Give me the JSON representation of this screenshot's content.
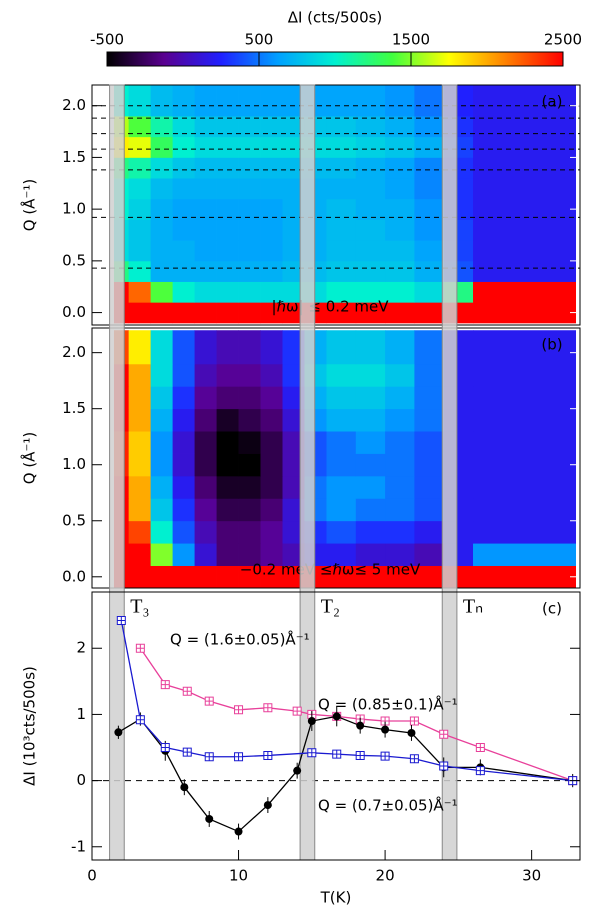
{
  "chart_data": [
    {
      "type": "heatmap",
      "panel_label": "(a)",
      "annotation": "|ℏω| ≤ 0.2 meV",
      "y_label": "Q (Å⁻¹)",
      "colorbar_label": "ΔI (cts/500s)",
      "clim": [
        -500,
        2500
      ],
      "colorbar_ticks": [
        -500,
        500,
        1500,
        2500
      ],
      "colormap": [
        "#000000",
        "#5a0090",
        "#2020ff",
        "#00a0ff",
        "#00f0d0",
        "#40ff40",
        "#ffff00",
        "#ff8000",
        "#ff0000"
      ],
      "xlim": [
        0,
        33.3
      ],
      "ylim": [
        -0.12,
        2.2
      ],
      "yticks": [
        {
          "value": 0,
          "label": "0.0"
        },
        0.5,
        {
          "value": 1,
          "label": "1.0"
        },
        1.5,
        {
          "value": 2,
          "label": "2.0"
        }
      ],
      "hlines": [
        0.43,
        0.92,
        1.38,
        1.58,
        1.73,
        1.88,
        2.0
      ],
      "x_edges": [
        1.5,
        2.5,
        4,
        5.5,
        7,
        8.5,
        10,
        11.5,
        13,
        14.5,
        16,
        18,
        20,
        22,
        24,
        26,
        33
      ],
      "y_edges": [
        -0.1,
        0.1,
        0.3,
        0.5,
        0.7,
        0.9,
        1.1,
        1.3,
        1.5,
        1.7,
        1.9,
        2.2
      ],
      "values": [
        [
          2500,
          2500,
          2500,
          2500,
          2500,
          2500,
          2500,
          2500,
          2500,
          2500,
          2500,
          2500,
          2500,
          2500,
          2500,
          2500
        ],
        [
          2500,
          2200,
          1400,
          1000,
          900,
          900,
          900,
          900,
          900,
          900,
          1000,
          1000,
          1000,
          900,
          1200,
          2500
        ],
        [
          1200,
          1000,
          700,
          700,
          700,
          700,
          700,
          700,
          750,
          750,
          800,
          800,
          800,
          700,
          400,
          200
        ],
        [
          900,
          800,
          700,
          700,
          650,
          650,
          650,
          650,
          700,
          700,
          750,
          750,
          750,
          650,
          350,
          200
        ],
        [
          900,
          800,
          700,
          650,
          650,
          650,
          650,
          650,
          700,
          700,
          750,
          750,
          700,
          600,
          350,
          200
        ],
        [
          1000,
          850,
          700,
          650,
          650,
          650,
          650,
          650,
          700,
          700,
          750,
          700,
          700,
          600,
          300,
          200
        ],
        [
          1000,
          900,
          750,
          700,
          700,
          700,
          700,
          700,
          700,
          700,
          700,
          700,
          650,
          550,
          300,
          200
        ],
        [
          1200,
          1100,
          900,
          800,
          750,
          750,
          750,
          750,
          750,
          750,
          750,
          700,
          650,
          550,
          300,
          200
        ],
        [
          1800,
          1700,
          1300,
          1000,
          900,
          900,
          900,
          900,
          900,
          900,
          900,
          850,
          800,
          700,
          350,
          200
        ],
        [
          1600,
          1400,
          1100,
          900,
          800,
          800,
          800,
          800,
          800,
          800,
          800,
          750,
          700,
          600,
          300,
          200
        ],
        [
          1000,
          900,
          750,
          700,
          650,
          650,
          650,
          650,
          650,
          650,
          650,
          650,
          600,
          500,
          250,
          200
        ]
      ]
    },
    {
      "type": "heatmap",
      "panel_label": "(b)",
      "annotation": "−0.2 meV ≤ℏω≤ 5 meV",
      "y_label": "Q (Å⁻¹)",
      "xlim": [
        0,
        33.3
      ],
      "ylim": [
        -0.1,
        2.22
      ],
      "yticks": [
        {
          "value": 0,
          "label": "0.0"
        },
        0.5,
        {
          "value": 1,
          "label": "1.0"
        },
        1.5,
        {
          "value": 2,
          "label": "2.0"
        }
      ],
      "x_edges": [
        1.5,
        2.5,
        4,
        5.5,
        7,
        8.5,
        10,
        11.5,
        13,
        14.5,
        16,
        18,
        20,
        22,
        24,
        26,
        33
      ],
      "y_edges": [
        -0.1,
        0.1,
        0.3,
        0.5,
        0.7,
        0.9,
        1.1,
        1.3,
        1.5,
        1.7,
        1.9,
        2.2
      ],
      "values": [
        [
          2500,
          2500,
          2500,
          2500,
          2500,
          2500,
          2500,
          2500,
          2500,
          2500,
          2500,
          2500,
          2500,
          2500,
          2500,
          2500
        ],
        [
          2500,
          2500,
          1500,
          600,
          100,
          -200,
          -200,
          -100,
          0,
          200,
          200,
          100,
          100,
          0,
          200,
          600
        ],
        [
          2500,
          2300,
          1000,
          400,
          0,
          -200,
          -200,
          -100,
          100,
          300,
          400,
          300,
          300,
          200,
          200,
          200
        ],
        [
          2500,
          2000,
          800,
          300,
          -100,
          -300,
          -300,
          -200,
          100,
          500,
          600,
          500,
          500,
          400,
          200,
          200
        ],
        [
          2500,
          2000,
          700,
          200,
          -200,
          -400,
          -400,
          -300,
          0,
          500,
          600,
          600,
          500,
          400,
          200,
          200
        ],
        [
          2400,
          1900,
          600,
          100,
          -300,
          -500,
          -500,
          -300,
          0,
          400,
          500,
          500,
          500,
          400,
          200,
          200
        ],
        [
          2400,
          1900,
          600,
          100,
          -300,
          -500,
          -450,
          -300,
          0,
          400,
          500,
          600,
          500,
          400,
          200,
          200
        ],
        [
          2500,
          2000,
          700,
          200,
          -200,
          -400,
          -300,
          -200,
          100,
          600,
          700,
          700,
          600,
          500,
          200,
          200
        ],
        [
          2500,
          2000,
          800,
          300,
          -100,
          -200,
          -200,
          -100,
          200,
          700,
          800,
          800,
          700,
          500,
          200,
          200
        ],
        [
          2500,
          2000,
          900,
          400,
          0,
          -100,
          -100,
          0,
          300,
          800,
          900,
          900,
          800,
          500,
          200,
          200
        ],
        [
          2300,
          1800,
          900,
          400,
          100,
          0,
          0,
          100,
          300,
          700,
          800,
          800,
          700,
          500,
          200,
          200
        ]
      ]
    },
    {
      "type": "line",
      "panel_label": "(c)",
      "x_label": "T(K)",
      "y_label": "ΔI (10³cts/500s)",
      "xlim": [
        0,
        33.3
      ],
      "ylim": [
        -1.2,
        2.85
      ],
      "xticks": [
        0,
        10,
        20,
        30
      ],
      "yticks": [
        -1,
        0,
        1,
        2
      ],
      "hline": 0,
      "transition_bands": [
        [
          1.2,
          2.2
        ],
        [
          14.2,
          15.2
        ],
        [
          23.9,
          24.9
        ]
      ],
      "band_labels": [
        "T₃",
        "T₂",
        "Tₙ"
      ],
      "series": [
        {
          "name": "Q = (1.6±0.05)Å⁻¹",
          "color": "#e8409a",
          "marker": "square",
          "x": [
            3.3,
            5,
            6.5,
            8,
            10,
            12,
            14,
            15,
            16.7,
            18.3,
            20,
            22,
            24,
            26.5,
            32.8
          ],
          "values": [
            2.0,
            1.45,
            1.35,
            1.2,
            1.07,
            1.1,
            1.05,
            1.0,
            0.97,
            0.93,
            0.9,
            0.9,
            0.7,
            0.5,
            0.0
          ]
        },
        {
          "name": "Q = (0.85±0.1)Å⁻¹",
          "color": "#000000",
          "marker": "circle",
          "x": [
            1.8,
            3.3,
            5,
            6.3,
            8,
            10,
            12,
            14,
            15,
            16.7,
            18.3,
            20,
            21.8,
            24,
            26.5,
            32.8
          ],
          "values": [
            0.73,
            0.93,
            0.45,
            -0.1,
            -0.58,
            -0.77,
            -0.37,
            0.15,
            0.9,
            0.97,
            0.83,
            0.77,
            0.72,
            0.2,
            0.2,
            0.0
          ],
          "errors": [
            0.1,
            0.1,
            0.15,
            0.12,
            0.12,
            0.12,
            0.12,
            0.12,
            0.15,
            0.15,
            0.12,
            0.12,
            0.12,
            0.15,
            0.12,
            0.1
          ]
        },
        {
          "name": "Q = (0.7±0.05)Å⁻¹",
          "color": "#1a1ad0",
          "marker": "square",
          "x": [
            2,
            3.3,
            5,
            6.5,
            8,
            10,
            12,
            15,
            16.7,
            18.3,
            20,
            22,
            24,
            26.5,
            32.8
          ],
          "values": [
            2.42,
            0.92,
            0.5,
            0.43,
            0.36,
            0.36,
            0.38,
            0.42,
            0.4,
            0.38,
            0.37,
            0.33,
            0.22,
            0.15,
            0.0
          ]
        }
      ]
    }
  ]
}
